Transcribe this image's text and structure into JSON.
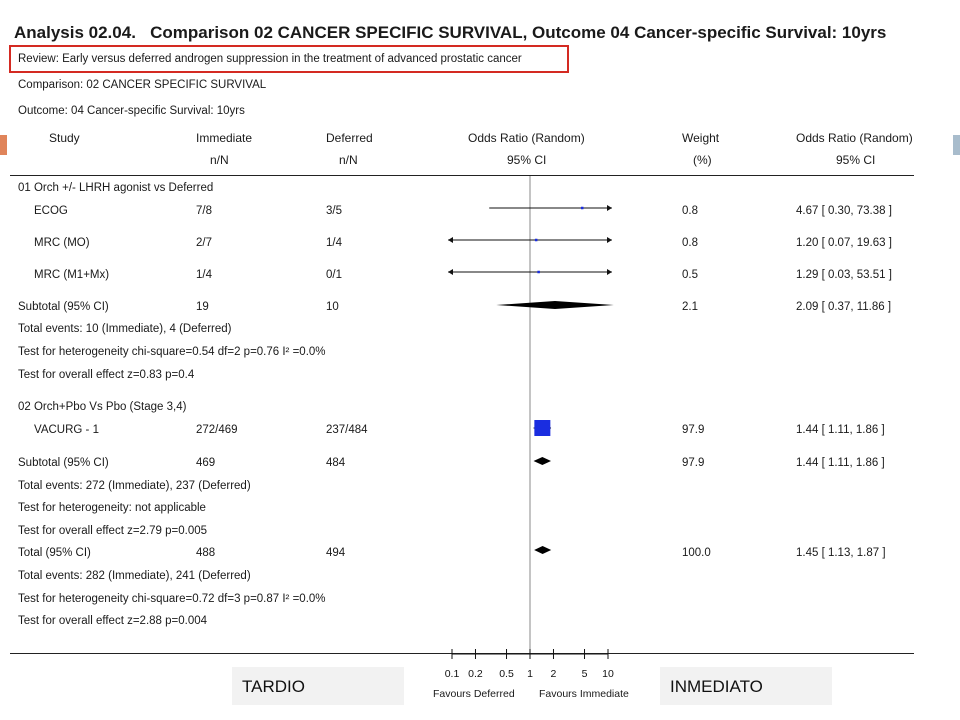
{
  "analysis_label": "Analysis 02.04.",
  "title": "Comparison 02 CANCER SPECIFIC SURVIVAL, Outcome 04 Cancer-specific Survival: 10yrs",
  "review": "Review:    Early versus deferred androgen suppression in the treatment of advanced prostatic cancer",
  "comparison": "Comparison:    02 CANCER SPECIFIC SURVIVAL",
  "outcome": "Outcome:    04 Cancer-specific Survival: 10yrs",
  "headers": {
    "study": "Study",
    "immediate": "Immediate",
    "immediate_sub": "n/N",
    "deferred": "Deferred",
    "deferred_sub": "n/N",
    "or_random": "Odds Ratio (Random)",
    "ci": "95% CI",
    "weight": "Weight",
    "weight_sub": "(%)",
    "or_random2": "Odds Ratio (Random)",
    "ci2": "95% CI"
  },
  "groups": [
    {
      "heading": "01 Orch +/- LHRH agonist vs Deferred",
      "studies": [
        {
          "name": "ECOG",
          "immediate": "7/8",
          "deferred": "3/5",
          "weight": "0.8",
          "or_text": "4.67 [ 0.30, 73.38 ]"
        },
        {
          "name": "MRC (MO)",
          "immediate": "2/7",
          "deferred": "1/4",
          "weight": "0.8",
          "or_text": "1.20 [ 0.07, 19.63 ]"
        },
        {
          "name": "MRC (M1+Mx)",
          "immediate": "1/4",
          "deferred": "0/1",
          "weight": "0.5",
          "or_text": "1.29 [ 0.03, 53.51 ]"
        }
      ],
      "subtotal": {
        "label": "Subtotal (95% CI)",
        "immediate": "19",
        "deferred": "10",
        "weight": "2.1",
        "or_text": "2.09 [ 0.37, 11.86 ]"
      },
      "notes": [
        "Total events: 10 (Immediate), 4 (Deferred)",
        "Test for heterogeneity chi-square=0.54 df=2 p=0.76 I² =0.0%",
        "Test for overall effect z=0.83    p=0.4"
      ]
    },
    {
      "heading": "02 Orch+Pbo Vs Pbo (Stage 3,4)",
      "studies": [
        {
          "name": "VACURG - 1",
          "immediate": "272/469",
          "deferred": "237/484",
          "weight": "97.9",
          "or_text": "1.44 [ 1.11, 1.86 ]"
        }
      ],
      "subtotal": {
        "label": "Subtotal (95% CI)",
        "immediate": "469",
        "deferred": "484",
        "weight": "97.9",
        "or_text": "1.44 [ 1.11, 1.86 ]"
      },
      "notes": [
        "Total events: 272 (Immediate), 237 (Deferred)",
        "Test for heterogeneity: not applicable",
        "Test for overall effect z=2.79    p=0.005"
      ]
    }
  ],
  "total": {
    "label": "Total (95% CI)",
    "immediate": "488",
    "deferred": "494",
    "weight": "100.0",
    "or_text": "1.45 [ 1.13, 1.87 ]"
  },
  "total_notes": [
    "Total events: 282 (Immediate), 241 (Deferred)",
    "Test for heterogeneity chi-square=0.72 df=3 p=0.87 I² =0.0%",
    "Test for overall effect z=2.88    p=0.004"
  ],
  "axis": {
    "ticks": [
      "0.1",
      "0.2",
      "0.5",
      "1",
      "2",
      "5",
      "10"
    ],
    "favours_left": "Favours Deferred",
    "favours_right": "Favours Immediate"
  },
  "bottom_left_label": "TARDIO",
  "bottom_right_label": "INMEDIATO",
  "chart_data": {
    "type": "forest",
    "x_scale": "log",
    "xlim": [
      0.1,
      10
    ],
    "null_value": 1,
    "studies": [
      {
        "name": "ECOG",
        "or": 4.67,
        "lo": 0.3,
        "hi": 73.38,
        "weight": 0.8
      },
      {
        "name": "MRC (MO)",
        "or": 1.2,
        "lo": 0.07,
        "hi": 19.63,
        "weight": 0.8
      },
      {
        "name": "MRC (M1+Mx)",
        "or": 1.29,
        "lo": 0.03,
        "hi": 53.51,
        "weight": 0.5
      },
      {
        "name": "VACURG - 1",
        "or": 1.44,
        "lo": 1.11,
        "hi": 1.86,
        "weight": 97.9
      }
    ],
    "pooled": [
      {
        "name": "Subtotal 01",
        "or": 2.09,
        "lo": 0.37,
        "hi": 11.86
      },
      {
        "name": "Subtotal 02",
        "or": 1.44,
        "lo": 1.11,
        "hi": 1.86
      },
      {
        "name": "Total",
        "or": 1.45,
        "lo": 1.13,
        "hi": 1.87
      }
    ],
    "colors": {
      "study_box": "#1a2de0",
      "line": "#111111",
      "highlight": "#d42a22",
      "side_accent": "#e0845a",
      "side_accent_right": "#a8bccc"
    }
  }
}
